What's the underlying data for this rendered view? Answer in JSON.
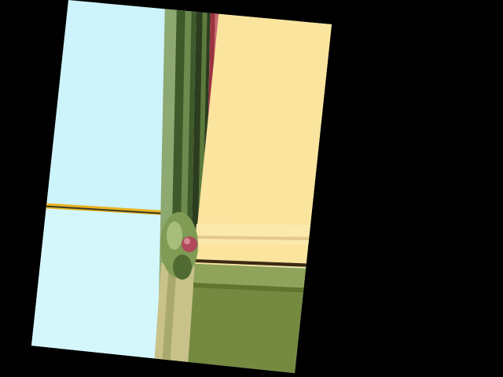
{
  "canvas": {
    "background": "#000000"
  },
  "image": {
    "description_kind": "rotated smeared photo texture",
    "colors": {
      "sky": "#cdf4fa",
      "sky_light": "#d4f7fc",
      "yellow_panel": "#fbe49e",
      "yellow_light": "#fbe8ab",
      "olive_panel": "#758a40",
      "olive_dark": "#5f7530",
      "tan": "#c8c28a",
      "dark_green": "#2c3d1f",
      "mid_green": "#4e6a32",
      "red_stripe": "#9b3340",
      "gold_line": "#e9b41e",
      "brown_line": "#3a2a14"
    }
  }
}
